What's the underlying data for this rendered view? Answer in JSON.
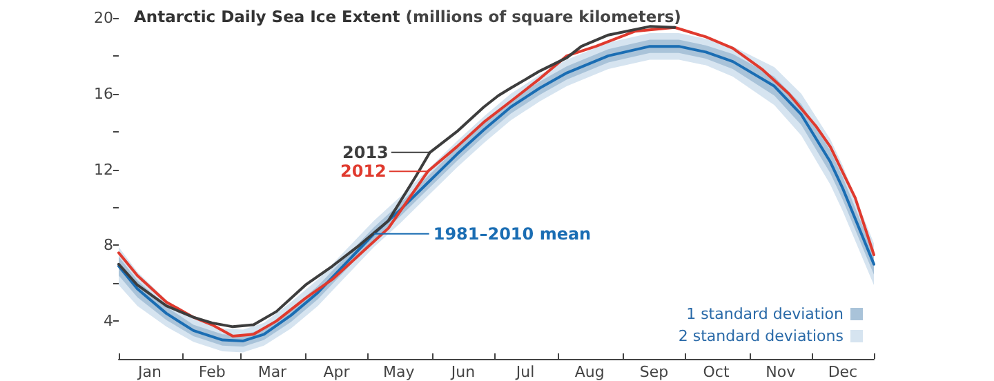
{
  "chart_data": {
    "type": "line",
    "title": "Antarctic Daily Sea Ice Extent",
    "ylabel": "(millions of square kilometers)",
    "xlim": [
      "--01-01",
      "--12-31"
    ],
    "xticks": [
      {
        "value": "--01-01",
        "label": null
      },
      {
        "value": "--01-16",
        "label": "Jan"
      },
      {
        "value": "--02-01",
        "label": null
      },
      {
        "value": "--02-15",
        "label": "Feb"
      },
      {
        "value": "--03-01",
        "label": null
      },
      {
        "value": "--03-16",
        "label": "Mar"
      },
      {
        "value": "--04-01",
        "label": null
      },
      {
        "value": "--04-16",
        "label": "Apr"
      },
      {
        "value": "--05-01",
        "label": null
      },
      {
        "value": "--05-16",
        "label": "May"
      },
      {
        "value": "--06-01",
        "label": null
      },
      {
        "value": "--06-16",
        "label": "Jun"
      },
      {
        "value": "--07-01",
        "label": null
      },
      {
        "value": "--07-16",
        "label": "Jul"
      },
      {
        "value": "--08-01",
        "label": null
      },
      {
        "value": "--08-16",
        "label": "Aug"
      },
      {
        "value": "--09-01",
        "label": null
      },
      {
        "value": "--09-16",
        "label": "Sep"
      },
      {
        "value": "--10-01",
        "label": null
      },
      {
        "value": "--10-16",
        "label": "Oct"
      },
      {
        "value": "--11-01",
        "label": null
      },
      {
        "value": "--11-16",
        "label": "Nov"
      },
      {
        "value": "--12-01",
        "label": null
      },
      {
        "value": "--12-16",
        "label": "Dec"
      },
      {
        "value": "--12-31",
        "label": null
      }
    ],
    "ylim": [
      2,
      20
    ],
    "yticks": [
      4,
      {
        "value": 6,
        "label": null
      },
      8,
      {
        "value": 10,
        "label": null
      },
      12,
      {
        "value": 14,
        "label": null
      },
      16,
      {
        "value": 18,
        "label": null
      },
      20
    ],
    "x": [
      "--01-01",
      "--01-10",
      "--01-24",
      "--02-06",
      "--02-20",
      "--03-02",
      "--03-12",
      "--03-25",
      "--04-07",
      "--04-20",
      "--05-04",
      "--05-17",
      "--05-30",
      "--06-13",
      "--06-26",
      "--07-09",
      "--07-23",
      "--08-05",
      "--08-25",
      "--09-14",
      "--09-28",
      "--10-11",
      "--10-24",
      "--11-13",
      "--11-26",
      "--12-10",
      "--12-16",
      "--12-31"
    ],
    "series": [
      {
        "name": "2 standard deviations",
        "color": "#d6e4f0",
        "values": [
          null,
          null,
          null,
          null,
          null,
          null,
          null,
          null,
          null,
          null,
          null,
          null,
          null,
          null,
          null,
          null,
          null,
          null,
          null,
          null,
          null,
          null,
          null,
          null,
          null,
          null,
          null,
          null
        ],
        "lower": [
          5.9,
          4.8,
          3.7,
          2.9,
          2.4,
          2.35,
          2.7,
          3.6,
          4.8,
          6.3,
          7.9,
          9.2,
          10.6,
          12.1,
          13.4,
          14.6,
          15.6,
          16.4,
          17.3,
          17.8,
          17.8,
          17.5,
          16.9,
          15.4,
          13.8,
          11.2,
          9.8,
          5.9
        ],
        "upper": [
          7.9,
          6.6,
          5.1,
          4.1,
          3.6,
          3.55,
          3.9,
          5.0,
          6.2,
          7.7,
          9.3,
          10.6,
          12.0,
          13.5,
          14.8,
          16.0,
          17.0,
          17.8,
          18.7,
          19.2,
          19.2,
          18.9,
          18.5,
          17.4,
          16.0,
          13.6,
          12.2,
          8.1
        ]
      },
      {
        "name": "1 standard deviation",
        "color": "#a9c3d9",
        "values": [
          null,
          null,
          null,
          null,
          null,
          null,
          null,
          null,
          null,
          null,
          null,
          null,
          null,
          null,
          null,
          null,
          null,
          null,
          null,
          null,
          null,
          null,
          null,
          null,
          null,
          null,
          null,
          null
        ],
        "lower": [
          6.4,
          5.25,
          4.05,
          3.2,
          2.7,
          2.65,
          3.0,
          3.95,
          5.15,
          6.65,
          8.25,
          9.55,
          10.95,
          12.45,
          13.75,
          14.95,
          15.95,
          16.75,
          17.65,
          18.15,
          18.15,
          17.85,
          17.3,
          15.9,
          14.35,
          11.8,
          10.4,
          6.45
        ],
        "upper": [
          7.4,
          6.15,
          4.75,
          3.8,
          3.3,
          3.25,
          3.6,
          4.65,
          5.85,
          7.35,
          8.95,
          10.25,
          11.65,
          13.15,
          14.45,
          15.65,
          16.65,
          17.45,
          18.35,
          18.85,
          18.85,
          18.55,
          18.1,
          16.9,
          15.45,
          13.0,
          11.6,
          7.55
        ]
      },
      {
        "name": "1981–2010 mean",
        "color": "#1a6db3",
        "values": [
          6.9,
          5.7,
          4.4,
          3.5,
          3.0,
          2.95,
          3.3,
          4.3,
          5.5,
          7.0,
          8.6,
          9.9,
          11.3,
          12.8,
          14.1,
          15.3,
          16.3,
          17.1,
          18.0,
          18.5,
          18.5,
          18.2,
          17.7,
          16.4,
          14.9,
          12.4,
          11.0,
          7.0
        ]
      },
      {
        "name": "2012",
        "color": "#e03a2e",
        "x": [
          "--01-01",
          "--01-10",
          "--01-24",
          "--02-06",
          "--02-15",
          "--02-25",
          "--03-07",
          "--03-18",
          "--04-01",
          "--04-14",
          "--04-27",
          "--05-11",
          "--05-30",
          "--06-13",
          "--06-26",
          "--07-09",
          "--07-23",
          "--08-05",
          "--08-19",
          "--09-07",
          "--09-26",
          "--10-11",
          "--10-24",
          "--11-07",
          "--11-20",
          "--12-03",
          "--12-10",
          "--12-22",
          "--12-31"
        ],
        "values": [
          7.6,
          6.4,
          5.0,
          4.2,
          3.8,
          3.2,
          3.3,
          4.0,
          5.2,
          6.2,
          7.5,
          8.9,
          11.9,
          13.2,
          14.5,
          15.6,
          16.8,
          18.0,
          18.5,
          19.3,
          19.5,
          19.0,
          18.4,
          17.3,
          16.0,
          14.3,
          13.2,
          10.5,
          7.5
        ]
      },
      {
        "name": "2013",
        "color": "#3d3d3d",
        "x": [
          "--01-01",
          "--01-10",
          "--01-24",
          "--02-06",
          "--02-15",
          "--02-25",
          "--03-07",
          "--03-18",
          "--04-01",
          "--04-14",
          "--04-27",
          "--05-11",
          "--05-24",
          "--05-31",
          "--06-13",
          "--06-26",
          "--07-03",
          "--07-09",
          "--07-23",
          "--08-05",
          "--08-12",
          "--08-25",
          "--09-14",
          "--09-26"
        ],
        "values": [
          7.0,
          5.9,
          4.8,
          4.2,
          3.9,
          3.7,
          3.8,
          4.5,
          5.9,
          6.9,
          8.0,
          9.3,
          11.6,
          12.9,
          14.0,
          15.3,
          15.9,
          16.3,
          17.2,
          17.9,
          18.5,
          19.1,
          19.55,
          19.5
        ]
      }
    ],
    "legend": "bottom right",
    "grid": false,
    "marker": "none",
    "line_style": "solid"
  }
}
